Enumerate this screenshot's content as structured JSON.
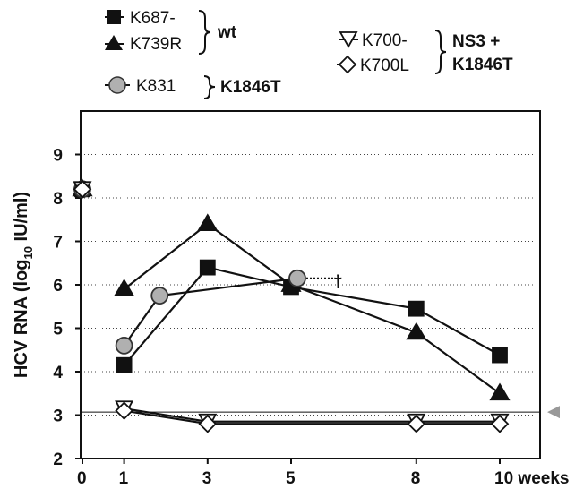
{
  "chart_data": {
    "type": "line",
    "x": [
      0,
      1,
      3,
      5,
      8,
      10
    ],
    "x_tick_labels": [
      "0",
      "1",
      "3",
      "5",
      "8",
      "10 weeks"
    ],
    "ylabel": "HCV RNA (log",
    "ylabel_sub": "10",
    "ylabel_tail": " IU/ml)",
    "ylim": [
      2,
      10
    ],
    "y_ticks": [
      "2",
      "3",
      "4",
      "5",
      "6",
      "7",
      "8",
      "9"
    ],
    "grid": "horizontal-dotted",
    "detection_limit": 3.07,
    "dagger_symbol": "†",
    "series": [
      {
        "name": "K687-",
        "marker": "square",
        "fill": "#111111",
        "points": [
          [
            0,
            8.2
          ],
          [
            1,
            4.15
          ],
          [
            3,
            6.4
          ],
          [
            5,
            5.95
          ],
          [
            8,
            5.45
          ],
          [
            10,
            4.38
          ]
        ]
      },
      {
        "name": "K739R",
        "marker": "triangle-up",
        "fill": "#111111",
        "points": [
          [
            0,
            8.2
          ],
          [
            1,
            5.9
          ],
          [
            3,
            7.4
          ],
          [
            5,
            6.0
          ],
          [
            8,
            4.9
          ],
          [
            10,
            3.5
          ]
        ]
      },
      {
        "name": "K831",
        "marker": "circle",
        "fill": "#b0b0b0",
        "points": [
          [
            0,
            8.2
          ],
          [
            1,
            4.6
          ],
          [
            1.85,
            5.75
          ],
          [
            5.15,
            6.15
          ]
        ]
      },
      {
        "name": "K700-",
        "marker": "triangle-down-open",
        "fill": "#ffffff",
        "points": [
          [
            0,
            8.2
          ],
          [
            1,
            3.15
          ],
          [
            3,
            2.85
          ],
          [
            8,
            2.85
          ],
          [
            10,
            2.85
          ]
        ]
      },
      {
        "name": "K700L",
        "marker": "diamond-open",
        "fill": "#ffffff",
        "points": [
          [
            0,
            8.2
          ],
          [
            1,
            3.1
          ],
          [
            3,
            2.8
          ],
          [
            8,
            2.8
          ],
          [
            10,
            2.8
          ]
        ]
      }
    ],
    "legend": {
      "groups": [
        {
          "items": [
            "K687-",
            "K739R"
          ],
          "label": "wt"
        },
        {
          "items": [
            "K831"
          ],
          "label": "K1846T"
        },
        {
          "items": [
            "K700-",
            "K700L"
          ],
          "label_lines": [
            "NS3 +",
            "K1846T"
          ]
        }
      ]
    }
  }
}
